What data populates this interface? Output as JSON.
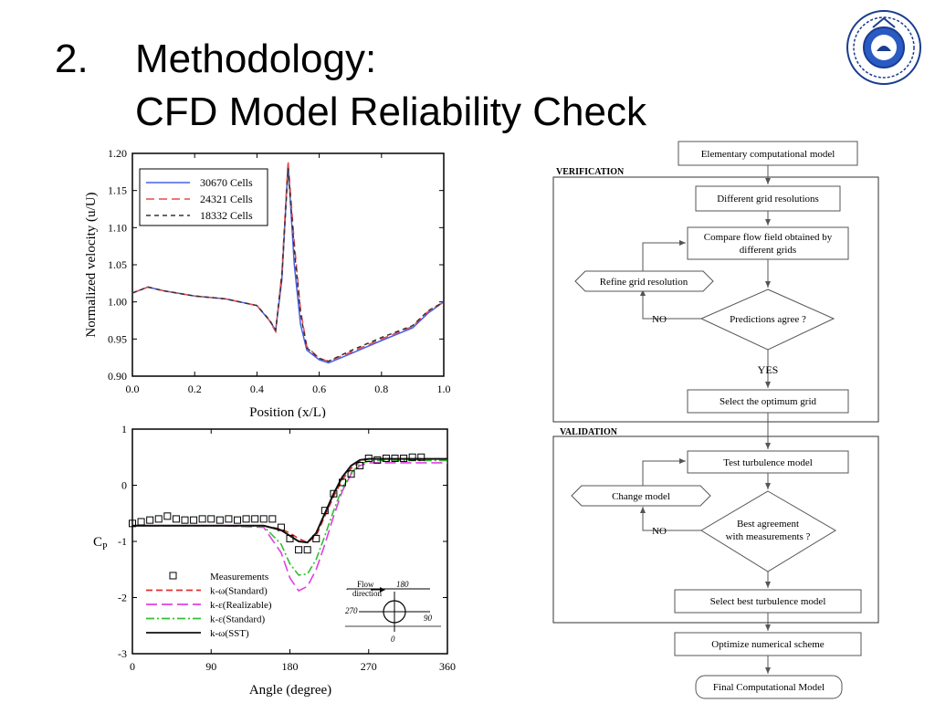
{
  "slide": {
    "number": "2.",
    "title_line1": "Methodology:",
    "title_line2": "CFD Model Reliability Check"
  },
  "logo": {
    "icon": "university-emblem-icon"
  },
  "flowchart": {
    "verification_label": "VERIFICATION",
    "validation_label": "VALIDATION",
    "elementary": "Elementary computational model",
    "grid_resolutions": "Different grid resolutions",
    "compare_line1": "Compare flow field obtained by",
    "compare_line2": "different grids",
    "refine": "Refine grid resolution",
    "predictions": "Predictions agree ?",
    "no1": "NO",
    "yes": "YES",
    "optimum": "Select the optimum grid",
    "test_turbulence": "Test turbulence model",
    "change_model": "Change model",
    "best_line1": "Best agreement",
    "best_line2": "with measurements ?",
    "no2": "NO",
    "select_best": "Select best turbulence model",
    "optimize": "Optimize numerical scheme",
    "final": "Final Computational Model"
  },
  "chart_data": [
    {
      "type": "line",
      "xlabel": "Position (x/L)",
      "ylabel": "Normalized velocity (u/U)",
      "xlim": [
        0.0,
        1.0
      ],
      "ylim": [
        0.9,
        1.2
      ],
      "xticks": [
        "0.0",
        "0.2",
        "0.4",
        "0.6",
        "0.8",
        "1.0"
      ],
      "yticks": [
        "0.90",
        "0.95",
        "1.00",
        "1.05",
        "1.10",
        "1.15",
        "1.20"
      ],
      "legend_position": "top-left",
      "x": [
        0.0,
        0.05,
        0.1,
        0.2,
        0.3,
        0.4,
        0.44,
        0.46,
        0.48,
        0.5,
        0.52,
        0.54,
        0.56,
        0.6,
        0.63,
        0.7,
        0.8,
        0.9,
        0.95,
        1.0
      ],
      "series": [
        {
          "name": "30670 Cells",
          "color": "#4a5ee8",
          "dash": "",
          "values": [
            1.012,
            1.02,
            1.015,
            1.008,
            1.004,
            0.995,
            0.975,
            0.962,
            1.03,
            1.185,
            1.05,
            0.97,
            0.935,
            0.922,
            0.918,
            0.93,
            0.948,
            0.965,
            0.985,
            1.0
          ]
        },
        {
          "name": "24321 Cells",
          "color": "#e84a4a",
          "dash": "9,5",
          "values": [
            1.012,
            1.02,
            1.015,
            1.008,
            1.004,
            0.995,
            0.975,
            0.96,
            1.04,
            1.19,
            1.08,
            0.99,
            0.94,
            0.924,
            0.92,
            0.932,
            0.95,
            0.967,
            0.987,
            1.0
          ]
        },
        {
          "name": "18332 Cells",
          "color": "#333333",
          "dash": "5,4",
          "values": [
            1.012,
            1.02,
            1.015,
            1.008,
            1.004,
            0.995,
            0.976,
            0.962,
            1.035,
            1.18,
            1.07,
            0.985,
            0.938,
            0.924,
            0.92,
            0.934,
            0.952,
            0.968,
            0.988,
            1.0
          ]
        }
      ]
    },
    {
      "type": "line",
      "xlabel": "Angle (degree)",
      "ylabel": "Cp",
      "xlim": [
        0,
        360
      ],
      "ylim": [
        -3,
        1
      ],
      "xticks": [
        "0",
        "90",
        "180",
        "270",
        "360"
      ],
      "yticks": [
        "-3",
        "-2",
        "-1",
        "0",
        "1"
      ],
      "legend_position": "bottom-left",
      "measurements": {
        "name": "Measurements",
        "x": [
          0,
          10,
          20,
          30,
          40,
          50,
          60,
          70,
          80,
          90,
          100,
          110,
          120,
          130,
          140,
          150,
          160,
          170,
          180,
          190,
          200,
          210,
          220,
          230,
          240,
          250,
          260,
          270,
          280,
          290,
          300,
          310,
          320,
          330
        ],
        "y": [
          -0.68,
          -0.65,
          -0.62,
          -0.6,
          -0.55,
          -0.6,
          -0.62,
          -0.62,
          -0.6,
          -0.6,
          -0.62,
          -0.6,
          -0.62,
          -0.6,
          -0.6,
          -0.6,
          -0.6,
          -0.75,
          -0.95,
          -1.15,
          -1.15,
          -0.95,
          -0.45,
          -0.15,
          0.05,
          0.2,
          0.35,
          0.48,
          0.45,
          0.48,
          0.48,
          0.48,
          0.5,
          0.5
        ]
      },
      "x": [
        0,
        50,
        100,
        150,
        170,
        180,
        190,
        200,
        210,
        220,
        230,
        240,
        250,
        260,
        270,
        280,
        300,
        330,
        360
      ],
      "series": [
        {
          "name": "k-ω(Standard)",
          "color": "#e03030",
          "dash": "7,4",
          "values": [
            -0.72,
            -0.72,
            -0.72,
            -0.72,
            -0.78,
            -0.85,
            -0.95,
            -1.02,
            -0.9,
            -0.55,
            -0.2,
            0.1,
            0.3,
            0.42,
            0.47,
            0.47,
            0.47,
            0.47,
            0.47
          ]
        },
        {
          "name": "k-ε(Realizable)",
          "color": "#e040e0",
          "dash": "12,5",
          "values": [
            -0.72,
            -0.72,
            -0.72,
            -0.75,
            -1.2,
            -1.65,
            -1.88,
            -1.8,
            -1.5,
            -1.05,
            -0.55,
            -0.1,
            0.2,
            0.35,
            0.4,
            0.4,
            0.4,
            0.4,
            0.4
          ]
        },
        {
          "name": "k-ε(Standard)",
          "color": "#30c030",
          "dash": "9,3,2,3",
          "values": [
            -0.72,
            -0.72,
            -0.72,
            -0.73,
            -1.05,
            -1.4,
            -1.6,
            -1.58,
            -1.32,
            -0.9,
            -0.45,
            -0.05,
            0.22,
            0.38,
            0.43,
            0.44,
            0.44,
            0.44,
            0.44
          ]
        },
        {
          "name": "k-ω(SST)",
          "color": "#111111",
          "dash": "",
          "values": [
            -0.72,
            -0.72,
            -0.72,
            -0.72,
            -0.8,
            -0.9,
            -1.0,
            -1.02,
            -0.85,
            -0.5,
            -0.15,
            0.15,
            0.35,
            0.45,
            0.47,
            0.47,
            0.47,
            0.47,
            0.47
          ]
        }
      ],
      "inset": {
        "label_line1": "Flow",
        "label_line2": "direction",
        "deg_top": "180",
        "deg_left": "270",
        "deg_right": "90",
        "deg_bottom": "0"
      }
    }
  ]
}
